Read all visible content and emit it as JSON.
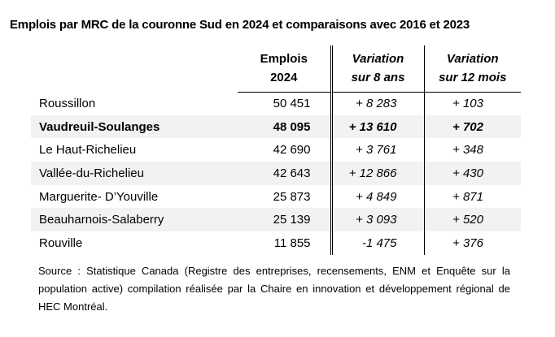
{
  "title": "Emplois par MRC de la couronne Sud en 2024 et comparaisons avec 2016 et 2023",
  "headers": {
    "emplois": [
      "Emplois",
      "2024"
    ],
    "var8": [
      "Variation",
      "sur 8 ans"
    ],
    "var12": [
      "Variation",
      "sur 12 mois"
    ]
  },
  "rows": [
    {
      "mrc": "Roussillon",
      "emplois": "50 451",
      "var8": "+ 8 283",
      "var12": "+ 103"
    },
    {
      "mrc": "Vaudreuil-Soulanges",
      "emplois": "48 095",
      "var8": "+ 13 610",
      "var12": "+ 702"
    },
    {
      "mrc": "Le Haut-Richelieu",
      "emplois": "42 690",
      "var8": "+ 3 761",
      "var12": "+ 348"
    },
    {
      "mrc": "Vallée-du-Richelieu",
      "emplois": "42 643",
      "var8": "+ 12 866",
      "var12": "+ 430"
    },
    {
      "mrc": "Marguerite- D’Youville",
      "emplois": "25 873",
      "var8": "+ 4 849",
      "var12": "+ 871"
    },
    {
      "mrc": "Beauharnois-Salaberry",
      "emplois": "25 139",
      "var8": "+ 3 093",
      "var12": "+ 520"
    },
    {
      "mrc": "Rouville",
      "emplois": "11 855",
      "var8": "-1 475",
      "var12": "+ 376"
    }
  ],
  "source": "Source : Statistique Canada (Registre des entreprises, recensements, ENM et Enquête sur la population active) compilation réalisée par la Chaire en innovation et développement régional de HEC Montréal."
}
